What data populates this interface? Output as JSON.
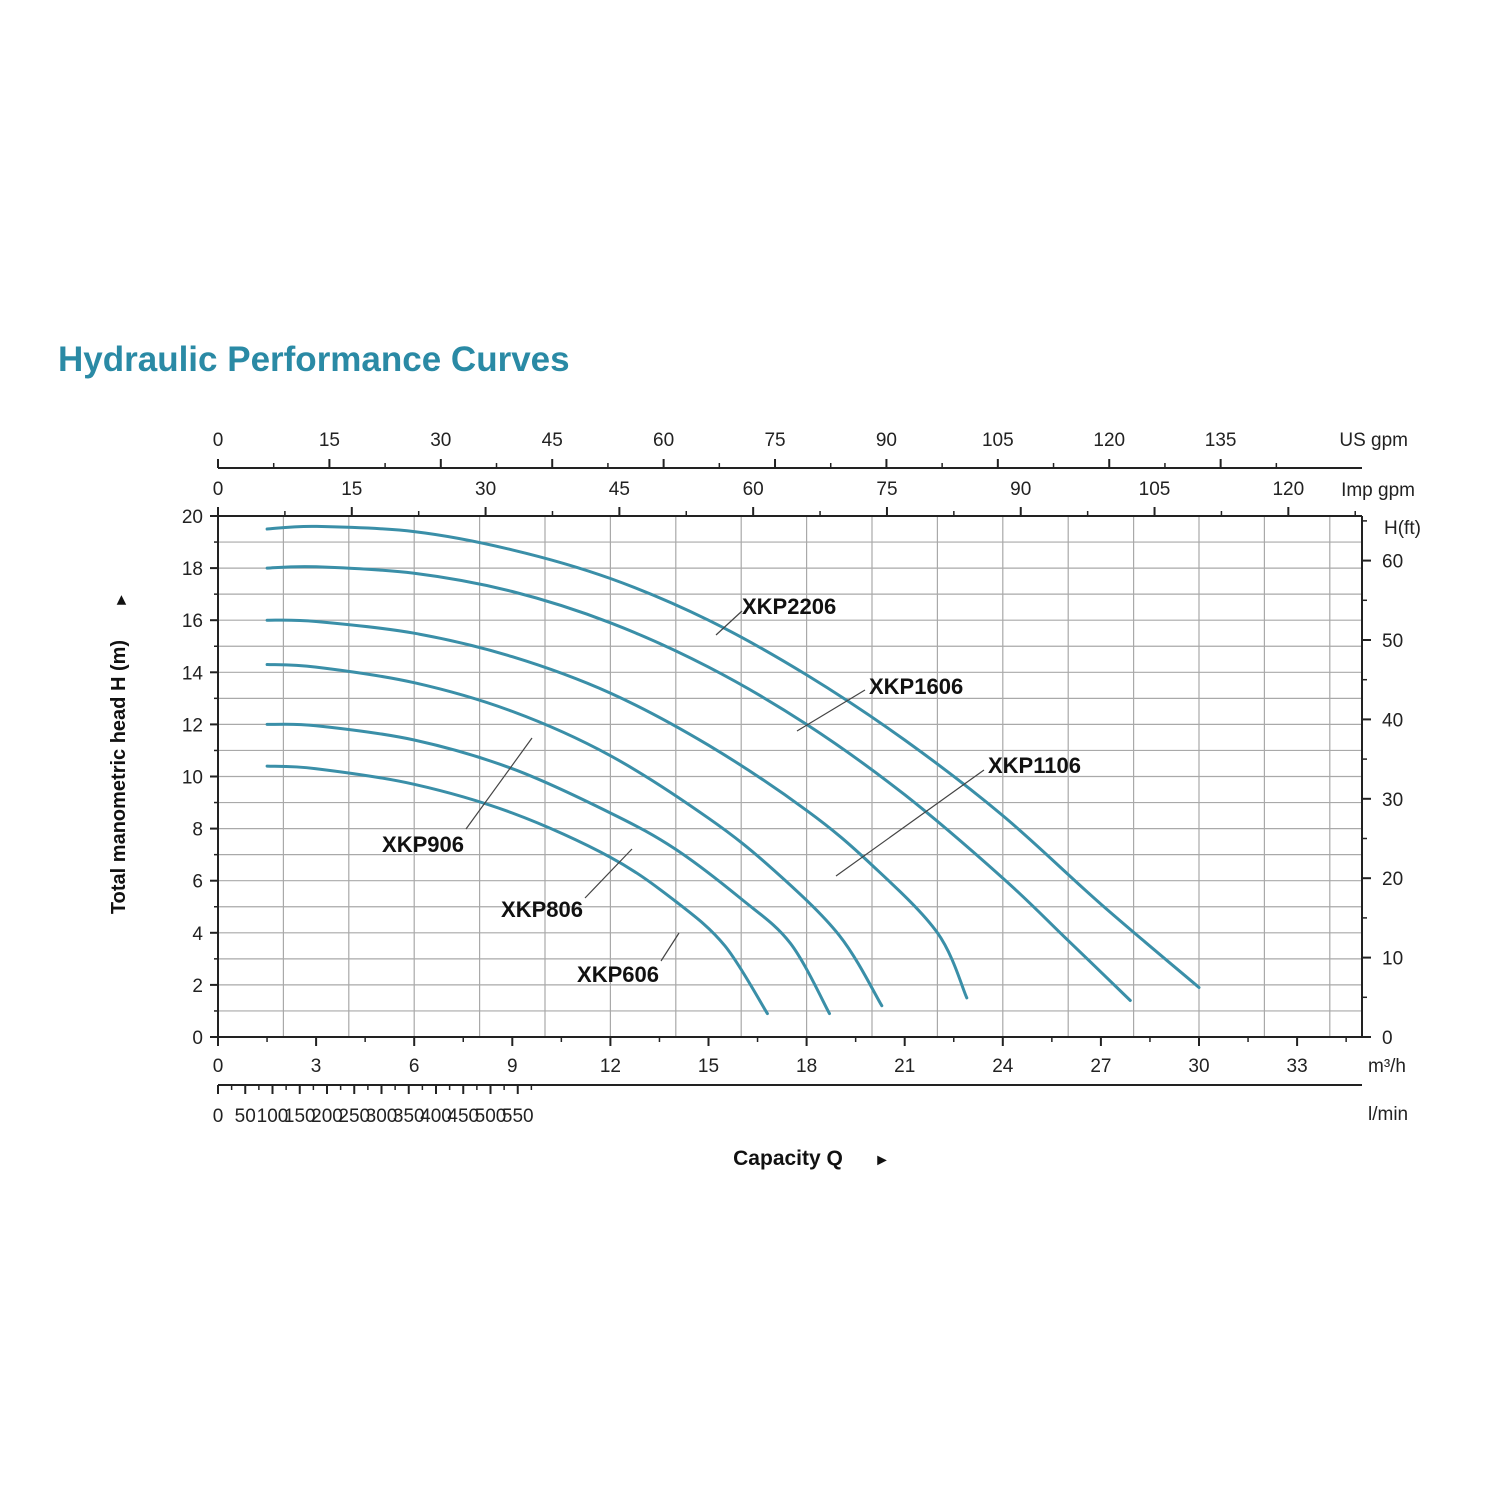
{
  "chart_data": {
    "type": "line",
    "title": "Hydraulic Performance Curves",
    "xlabel": "Capacity Q",
    "xarrow": "►",
    "ylabel": "Total manometric head H (m)",
    "yarrow": "►",
    "x_unit": "m³/h",
    "xlim": [
      0,
      35
    ],
    "ylim": [
      0,
      20
    ],
    "grid": true,
    "curve_color": "#3a8fa8",
    "y_ticks": [
      0,
      2,
      4,
      6,
      8,
      10,
      12,
      14,
      16,
      18,
      20
    ],
    "x_ticks": [
      0,
      3,
      6,
      9,
      12,
      15,
      18,
      21,
      24,
      27,
      30,
      33
    ],
    "axis_lpm": {
      "unit": "l/min",
      "ticks": [
        0,
        50,
        100,
        150,
        200,
        250,
        300,
        350,
        400,
        450,
        500,
        550
      ]
    },
    "axis_us_gpm": {
      "unit": "US gpm",
      "ticks": [
        0,
        15,
        30,
        45,
        60,
        75,
        90,
        105,
        120,
        135
      ]
    },
    "axis_imp_gpm": {
      "unit": "Imp gpm",
      "ticks": [
        0,
        15,
        30,
        45,
        60,
        75,
        90,
        105,
        120
      ]
    },
    "axis_ft": {
      "unit": "H(ft)",
      "ticks": [
        0,
        10,
        20,
        30,
        40,
        50,
        60
      ]
    },
    "series": [
      {
        "name": "XKP2206",
        "points": [
          [
            1.5,
            19.5
          ],
          [
            3,
            19.6
          ],
          [
            6,
            19.4
          ],
          [
            9,
            18.7
          ],
          [
            12,
            17.6
          ],
          [
            15,
            16.0
          ],
          [
            18,
            13.9
          ],
          [
            21,
            11.4
          ],
          [
            24,
            8.5
          ],
          [
            27,
            5.1
          ],
          [
            30,
            1.9
          ]
        ]
      },
      {
        "name": "XKP1606",
        "points": [
          [
            1.5,
            18.0
          ],
          [
            3,
            18.05
          ],
          [
            6,
            17.8
          ],
          [
            9,
            17.1
          ],
          [
            12,
            15.9
          ],
          [
            15,
            14.2
          ],
          [
            18,
            12.0
          ],
          [
            21,
            9.3
          ],
          [
            24,
            6.1
          ],
          [
            26,
            3.7
          ],
          [
            27.9,
            1.4
          ]
        ]
      },
      {
        "name": "XKP1106",
        "points": [
          [
            1.5,
            16.0
          ],
          [
            3,
            15.95
          ],
          [
            6,
            15.5
          ],
          [
            9,
            14.6
          ],
          [
            12,
            13.2
          ],
          [
            15,
            11.2
          ],
          [
            18,
            8.7
          ],
          [
            20,
            6.6
          ],
          [
            22,
            4.0
          ],
          [
            22.9,
            1.5
          ]
        ]
      },
      {
        "name": "XKP906",
        "points": [
          [
            1.5,
            14.3
          ],
          [
            3,
            14.2
          ],
          [
            6,
            13.6
          ],
          [
            9,
            12.5
          ],
          [
            12,
            10.8
          ],
          [
            15,
            8.4
          ],
          [
            17,
            6.4
          ],
          [
            19,
            3.9
          ],
          [
            20.3,
            1.2
          ]
        ]
      },
      {
        "name": "XKP806",
        "points": [
          [
            1.5,
            12.0
          ],
          [
            3,
            11.95
          ],
          [
            6,
            11.4
          ],
          [
            9,
            10.3
          ],
          [
            12,
            8.6
          ],
          [
            14,
            7.2
          ],
          [
            16,
            5.3
          ],
          [
            17.5,
            3.6
          ],
          [
            18.7,
            0.9
          ]
        ]
      },
      {
        "name": "XKP606",
        "points": [
          [
            1.5,
            10.4
          ],
          [
            3,
            10.3
          ],
          [
            6,
            9.7
          ],
          [
            9,
            8.6
          ],
          [
            12,
            6.9
          ],
          [
            14,
            5.2
          ],
          [
            15.5,
            3.5
          ],
          [
            16.8,
            0.9
          ]
        ]
      }
    ]
  }
}
